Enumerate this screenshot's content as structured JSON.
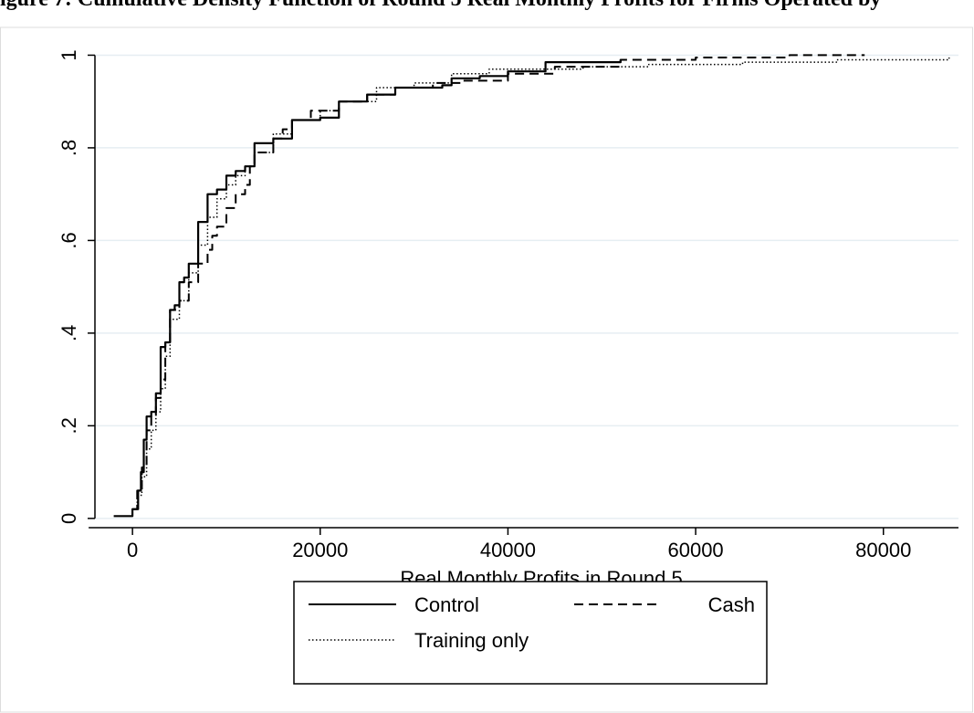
{
  "header_text": "igure 7: Cumulative Density Function of Round 5 Real Monthly Profits for Firms Operated by",
  "chart_data": {
    "type": "line",
    "title": "",
    "xlabel": "Real Monthly Profits in Round 5",
    "ylabel": "",
    "xlim": [
      -4000,
      88000
    ],
    "ylim": [
      -0.02,
      1.06
    ],
    "xticks": [
      0,
      20000,
      40000,
      60000,
      80000
    ],
    "xtick_labels": [
      "0",
      "20000",
      "40000",
      "60000",
      "80000"
    ],
    "yticks": [
      0,
      0.2,
      0.4,
      0.6,
      0.8,
      1
    ],
    "ytick_labels": [
      "0",
      ".2",
      ".4",
      ".6",
      ".8",
      "1"
    ],
    "grid": true,
    "legend": {
      "position": "bottom",
      "columns": 2
    },
    "series": [
      {
        "name": "Control",
        "style": "solid",
        "x": [
          -2000,
          0,
          600,
          900,
          1200,
          1500,
          2000,
          2500,
          3000,
          3500,
          4000,
          4500,
          5000,
          5500,
          6000,
          7000,
          8000,
          8500,
          9000,
          10000,
          11000,
          12000,
          13000,
          15000,
          17000,
          20000,
          22000,
          25000,
          28000,
          30000,
          33000,
          34000,
          37000,
          40000,
          44000,
          52000
        ],
        "y": [
          0.005,
          0.02,
          0.06,
          0.1,
          0.17,
          0.22,
          0.23,
          0.27,
          0.37,
          0.38,
          0.45,
          0.46,
          0.51,
          0.52,
          0.55,
          0.64,
          0.7,
          0.7,
          0.71,
          0.74,
          0.75,
          0.76,
          0.81,
          0.82,
          0.86,
          0.865,
          0.9,
          0.915,
          0.93,
          0.93,
          0.935,
          0.95,
          0.955,
          0.965,
          0.985,
          0.99
        ]
      },
      {
        "name": "Cash",
        "style": "dashed",
        "x": [
          0,
          500,
          1000,
          1500,
          2000,
          2500,
          3000,
          3500,
          4000,
          5000,
          6000,
          7000,
          8000,
          8500,
          9000,
          10000,
          11000,
          12000,
          12500,
          13000,
          15000,
          16000,
          17000,
          19000,
          22000,
          25000,
          28000,
          32000,
          35000,
          40000,
          45000,
          52000,
          60000,
          70000,
          78000
        ],
        "y": [
          0.02,
          0.06,
          0.11,
          0.19,
          0.22,
          0.26,
          0.3,
          0.38,
          0.45,
          0.47,
          0.51,
          0.55,
          0.58,
          0.61,
          0.63,
          0.67,
          0.7,
          0.72,
          0.76,
          0.79,
          0.82,
          0.84,
          0.86,
          0.88,
          0.9,
          0.915,
          0.93,
          0.94,
          0.945,
          0.96,
          0.975,
          0.99,
          0.995,
          1.0,
          1.0
        ]
      },
      {
        "name": "Training only",
        "style": "dotted",
        "x": [
          0,
          500,
          1000,
          1500,
          2000,
          2500,
          3000,
          3500,
          4000,
          5000,
          6000,
          7000,
          8000,
          9000,
          10000,
          11000,
          12000,
          13000,
          15000,
          17000,
          20000,
          22000,
          26000,
          30000,
          34000,
          38000,
          42000,
          48000,
          55000,
          65000,
          75000,
          87000
        ],
        "y": [
          0.02,
          0.05,
          0.09,
          0.15,
          0.19,
          0.23,
          0.28,
          0.35,
          0.43,
          0.47,
          0.53,
          0.59,
          0.65,
          0.69,
          0.72,
          0.74,
          0.76,
          0.79,
          0.83,
          0.86,
          0.88,
          0.9,
          0.93,
          0.94,
          0.96,
          0.97,
          0.97,
          0.975,
          0.98,
          0.985,
          0.99,
          0.995
        ]
      }
    ]
  }
}
